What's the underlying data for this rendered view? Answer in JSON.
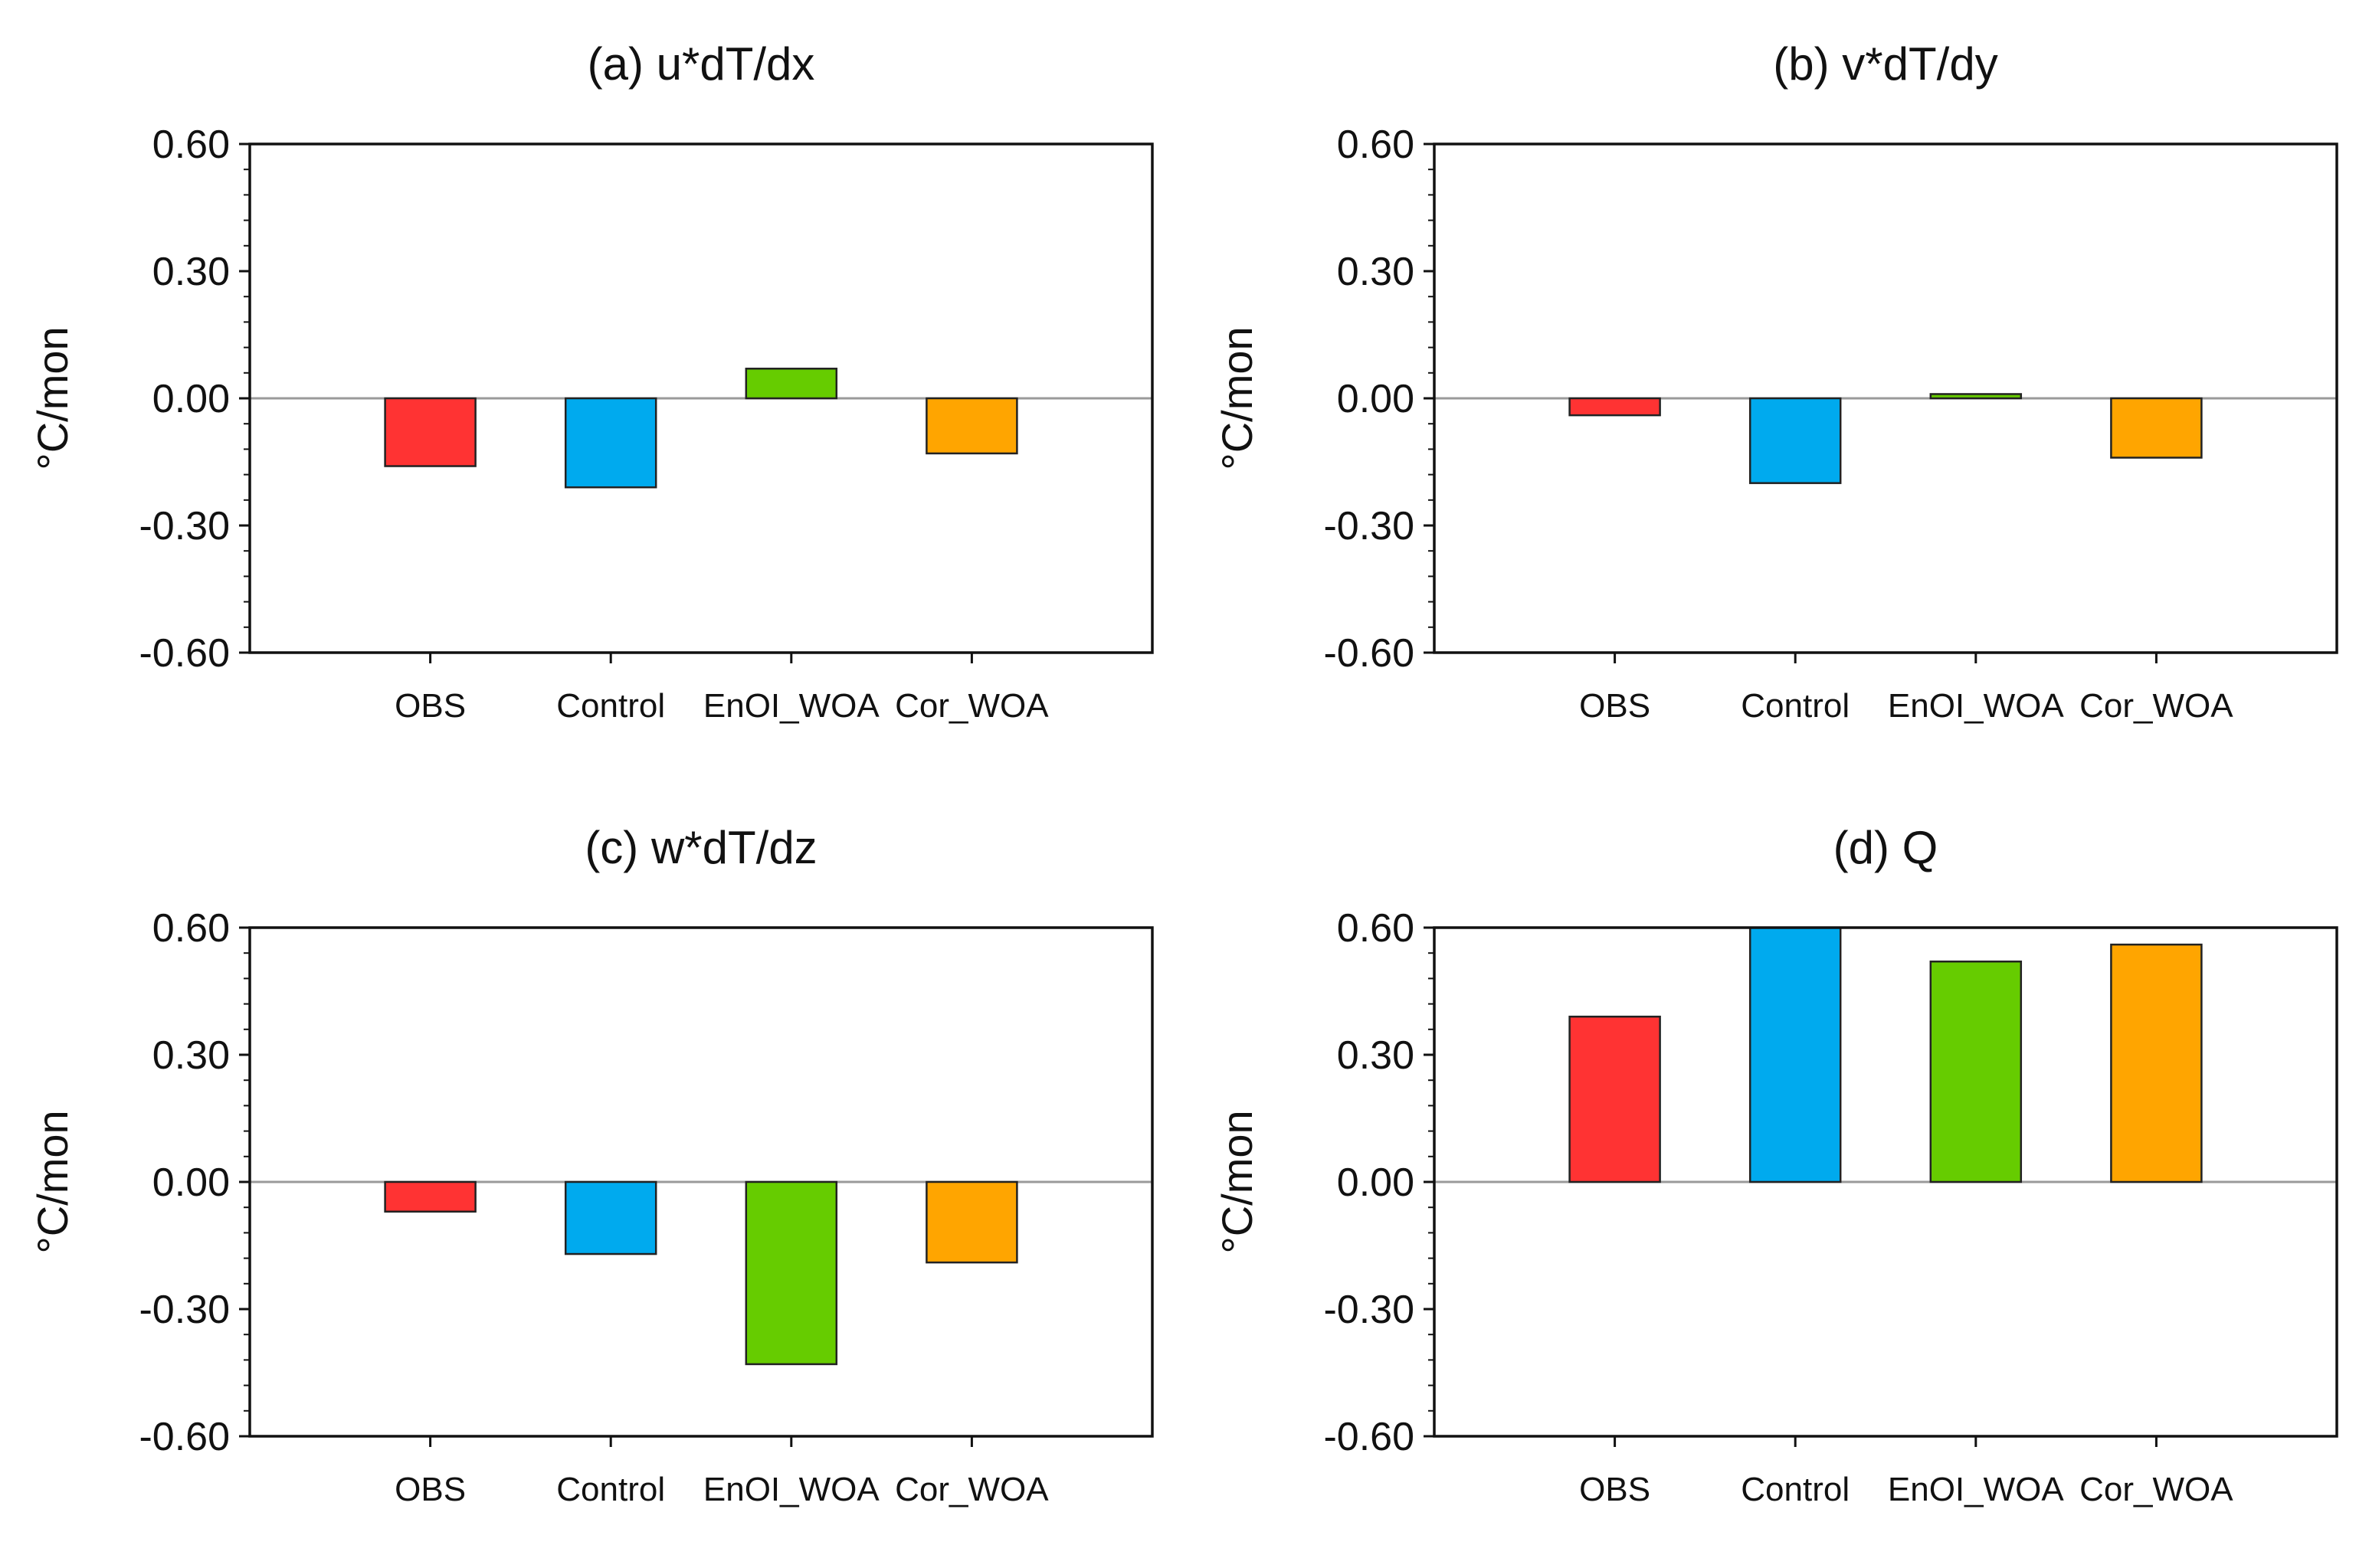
{
  "chart_data": [
    {
      "type": "bar",
      "title": "(a) u*dT/dx",
      "ylabel": "°C/mon",
      "xlabel": "",
      "categories": [
        "OBS",
        "Control",
        "EnOI_WOA",
        "Cor_WOA"
      ],
      "values": [
        -0.16,
        -0.21,
        0.07,
        -0.13
      ],
      "colors": [
        "#ff3333",
        "#00aaee",
        "#66cc00",
        "#ffa500"
      ],
      "ylim": [
        -0.6,
        0.6
      ],
      "yticks": [
        "0.60",
        "0.30",
        "0.00",
        "-0.30",
        "-0.60"
      ],
      "grid": false
    },
    {
      "type": "bar",
      "title": "(b) v*dT/dy",
      "ylabel": "°C/mon",
      "xlabel": "",
      "categories": [
        "OBS",
        "Control",
        "EnOI_WOA",
        "Cor_WOA"
      ],
      "values": [
        -0.04,
        -0.2,
        0.01,
        -0.14
      ],
      "colors": [
        "#ff3333",
        "#00aaee",
        "#66cc00",
        "#ffa500"
      ],
      "ylim": [
        -0.6,
        0.6
      ],
      "yticks": [
        "0.60",
        "0.30",
        "0.00",
        "-0.30",
        "-0.60"
      ],
      "grid": false
    },
    {
      "type": "bar",
      "title": "(c) w*dT/dz",
      "ylabel": "°C/mon",
      "xlabel": "",
      "categories": [
        "OBS",
        "Control",
        "EnOI_WOA",
        "Cor_WOA"
      ],
      "values": [
        -0.07,
        -0.17,
        -0.43,
        -0.19
      ],
      "colors": [
        "#ff3333",
        "#00aaee",
        "#66cc00",
        "#ffa500"
      ],
      "ylim": [
        -0.6,
        0.6
      ],
      "yticks": [
        "0.60",
        "0.30",
        "0.00",
        "-0.30",
        "-0.60"
      ],
      "grid": false
    },
    {
      "type": "bar",
      "title": "(d) Q",
      "ylabel": "°C/mon",
      "xlabel": "",
      "categories": [
        "OBS",
        "Control",
        "EnOI_WOA",
        "Cor_WOA"
      ],
      "values": [
        0.39,
        0.6,
        0.52,
        0.56
      ],
      "colors": [
        "#ff3333",
        "#00aaee",
        "#66cc00",
        "#ffa500"
      ],
      "ylim": [
        -0.6,
        0.6
      ],
      "yticks": [
        "0.60",
        "0.30",
        "0.00",
        "-0.30",
        "-0.60"
      ],
      "grid": false
    }
  ]
}
